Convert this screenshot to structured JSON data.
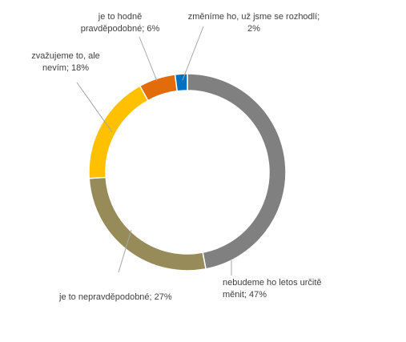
{
  "chart_data": {
    "type": "pie",
    "variant": "doughnut",
    "start_angle_deg": 0,
    "direction": "clockwise",
    "slices": [
      {
        "label": "nebudeme ho letos určitě měnit",
        "value": 47,
        "display": [
          "nebudeme ho letos určitě",
          "měnit; 47%"
        ],
        "color": "#808080"
      },
      {
        "label": "je to nepravděpodobné",
        "value": 27,
        "display": [
          "je to nepravděpodobné; 27%"
        ],
        "color": "#978B59"
      },
      {
        "label": "zvažujeme to, ale nevím",
        "value": 18,
        "display": [
          "zvažujeme to, ale",
          "nevím; 18%"
        ],
        "color": "#FFC000"
      },
      {
        "label": "je to hodně pravděpodobné",
        "value": 6,
        "display": [
          "je to hodně",
          "pravděpodobné; 6%"
        ],
        "color": "#E26B0A"
      },
      {
        "label": "změníme ho, už jsme se rozhodli",
        "value": 2,
        "display": [
          "změníme ho, už jsme se rozhodlí;",
          "2%"
        ],
        "color": "#0070C0"
      }
    ]
  }
}
